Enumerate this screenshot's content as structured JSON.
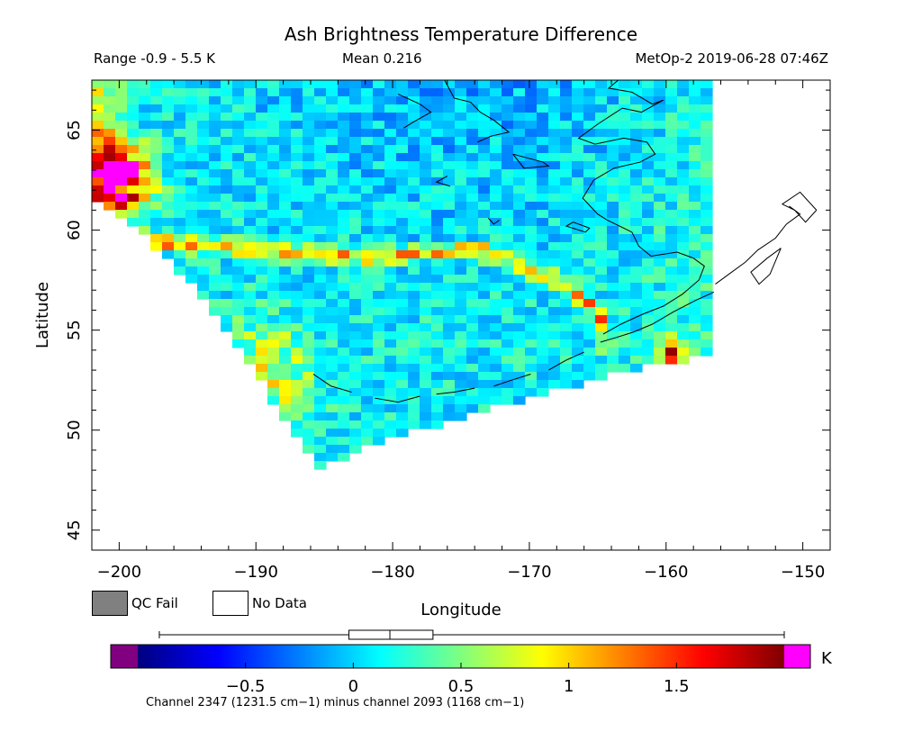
{
  "header": {
    "title": "Ash Brightness Temperature Difference",
    "range": "Range -0.9 - 5.5 K",
    "mean": "Mean 0.216",
    "source": "MetOp-2 2019-06-28 07:46Z"
  },
  "legend": {
    "qc_fail": "QC Fail",
    "no_data": "No Data",
    "qc_fail_color": "#808080",
    "no_data_color": "#ffffff"
  },
  "colorbar": {
    "unit": "K",
    "ticks": [
      -0.5,
      0,
      0.5,
      1,
      1.5
    ],
    "tick_labels": [
      "−0.5",
      "0",
      "0.5",
      "1",
      "1.5"
    ],
    "range": [
      -1.0,
      2.0
    ],
    "under_color": "#800080",
    "over_color": "#ff00ff",
    "caption": "Channel 2347 (1231.5 cm−1) minus channel 2093 (1168 cm−1)",
    "box_whisker": {
      "min": -0.9,
      "q1": -0.02,
      "median": 0.17,
      "q3": 0.37,
      "max": 2.0
    }
  },
  "chart_data": {
    "type": "heatmap",
    "title": "Ash Brightness Temperature Difference",
    "xlabel": "Longitude",
    "ylabel": "Latitude",
    "xlim": [
      -202,
      -148
    ],
    "ylim": [
      44,
      67.5
    ],
    "xticks": [
      -200,
      -190,
      -180,
      -170,
      -160,
      -150
    ],
    "xtick_labels": [
      "−200",
      "−190",
      "−180",
      "−170",
      "−160",
      "−150"
    ],
    "yticks": [
      45,
      50,
      55,
      60,
      65
    ],
    "ytick_labels": [
      "45",
      "50",
      "55",
      "60",
      "65"
    ],
    "swath_outline_lonlat": [
      [
        -202,
        67.5
      ],
      [
        -156.5,
        67.5
      ],
      [
        -156.5,
        53.8
      ],
      [
        -165,
        52.6
      ],
      [
        -175,
        50.6
      ],
      [
        -181,
        49.4
      ],
      [
        -185.5,
        48.1
      ],
      [
        -188,
        50.5
      ],
      [
        -191,
        54.0
      ],
      [
        -195,
        57.5
      ],
      [
        -199,
        60.3
      ],
      [
        -202,
        61.8
      ]
    ],
    "features": [
      {
        "name": "ash plume ridge",
        "points_lonlat": [
          [
            -200,
            59.5
          ],
          [
            -193,
            59.2
          ],
          [
            -187,
            58.8
          ],
          [
            -181,
            58.6
          ],
          [
            -177,
            58.9
          ],
          [
            -173.5,
            59.0
          ],
          [
            -171.5,
            58.5
          ],
          [
            -169,
            57.8
          ],
          [
            -166.5,
            56.8
          ],
          [
            -164.8,
            55.7
          ],
          [
            -164.5,
            54.3
          ]
        ],
        "value": 1.2
      },
      {
        "name": "hot spot near -159.5",
        "lon": -159.5,
        "lat": 53.9,
        "value": 1.8
      },
      {
        "name": "saturated edge (west)",
        "lon": -200.5,
        "lat": 62.5,
        "value": 2.0
      },
      {
        "name": "warm southwest edge",
        "lon": -189.5,
        "lat": 52.8,
        "value": 1.0
      }
    ],
    "grid": false
  }
}
